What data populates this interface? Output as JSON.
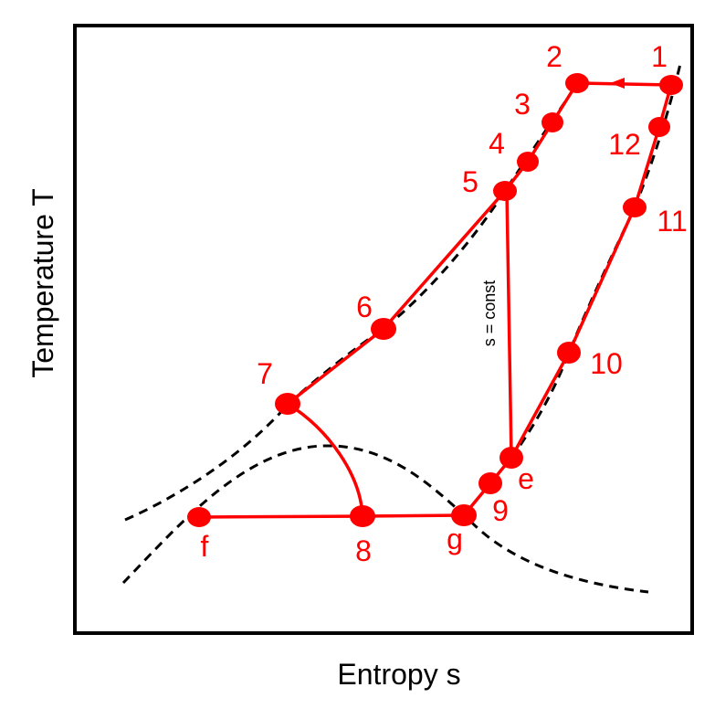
{
  "axes": {
    "xlabel": "Entropy s",
    "ylabel": "Temperature T"
  },
  "annotation": {
    "isentrope": "s = const"
  },
  "colors": {
    "process": "#ff0000",
    "dome": "#000000",
    "frame": "#000000"
  },
  "points": [
    {
      "id": "1",
      "label": "1"
    },
    {
      "id": "2",
      "label": "2"
    },
    {
      "id": "3",
      "label": "3"
    },
    {
      "id": "4",
      "label": "4"
    },
    {
      "id": "5",
      "label": "5"
    },
    {
      "id": "6",
      "label": "6"
    },
    {
      "id": "7",
      "label": "7"
    },
    {
      "id": "8",
      "label": "8"
    },
    {
      "id": "9",
      "label": "9"
    },
    {
      "id": "10",
      "label": "10"
    },
    {
      "id": "11",
      "label": "11"
    },
    {
      "id": "12",
      "label": "12"
    },
    {
      "id": "e",
      "label": "e"
    },
    {
      "id": "f",
      "label": "f"
    },
    {
      "id": "g",
      "label": "g"
    }
  ]
}
